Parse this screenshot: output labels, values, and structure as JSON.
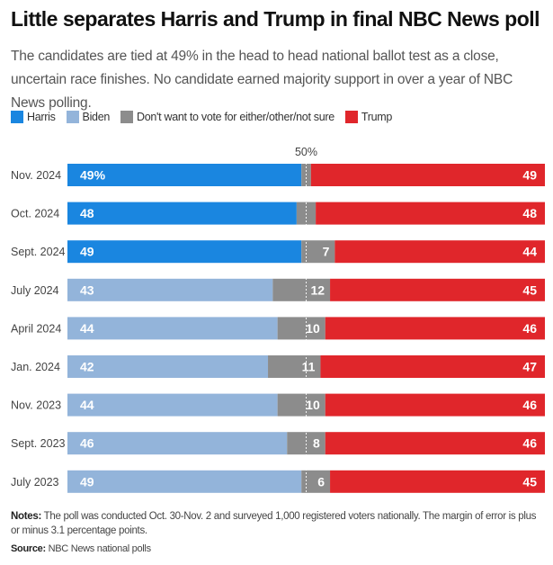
{
  "title": "Little separates Harris and Trump in final NBC News poll",
  "subtitle": "The candidates are tied at 49% in the head to head national ballot test as a close, uncertain race finishes. No candidate earned majority support in over a year of NBC News polling.",
  "legend": [
    {
      "name": "Harris",
      "color": "#1a86e0"
    },
    {
      "name": "Biden",
      "color": "#93b4da"
    },
    {
      "name": "Don't want to vote for either/other/not sure",
      "color": "#8c8c8c"
    },
    {
      "name": "Trump",
      "color": "#e0262b"
    }
  ],
  "notes": {
    "label": "Notes:",
    "text": "The poll was conducted Oct. 30-Nov. 2 and surveyed 1,000 registered voters nationally. The margin of error is plus or minus 3.1 percentage points."
  },
  "source": {
    "label": "Source:",
    "text": "NBC News national polls"
  },
  "chart_data": {
    "type": "bar",
    "orientation": "horizontal-stacked",
    "reference_line": {
      "value": 50,
      "label": "50%"
    },
    "xlim": [
      0,
      100
    ],
    "categories": [
      "Nov. 2024",
      "Oct. 2024",
      "Sept. 2024",
      "July 2024",
      "April 2024",
      "Jan. 2024",
      "Nov. 2023",
      "Sept. 2023",
      "July 2023"
    ],
    "rows": [
      {
        "dem_name": "Harris",
        "dem": 49,
        "other": 2,
        "trump": 49,
        "dem_label": "49%",
        "other_label": "",
        "trump_label": "49"
      },
      {
        "dem_name": "Harris",
        "dem": 48,
        "other": 4,
        "trump": 48,
        "dem_label": "48",
        "other_label": "",
        "trump_label": "48"
      },
      {
        "dem_name": "Harris",
        "dem": 49,
        "other": 7,
        "trump": 44,
        "dem_label": "49",
        "other_label": "7",
        "trump_label": "44"
      },
      {
        "dem_name": "Biden",
        "dem": 43,
        "other": 12,
        "trump": 45,
        "dem_label": "43",
        "other_label": "12",
        "trump_label": "45"
      },
      {
        "dem_name": "Biden",
        "dem": 44,
        "other": 10,
        "trump": 46,
        "dem_label": "44",
        "other_label": "10",
        "trump_label": "46"
      },
      {
        "dem_name": "Biden",
        "dem": 42,
        "other": 11,
        "trump": 47,
        "dem_label": "42",
        "other_label": "11",
        "trump_label": "47"
      },
      {
        "dem_name": "Biden",
        "dem": 44,
        "other": 10,
        "trump": 46,
        "dem_label": "44",
        "other_label": "10",
        "trump_label": "46"
      },
      {
        "dem_name": "Biden",
        "dem": 46,
        "other": 8,
        "trump": 46,
        "dem_label": "46",
        "other_label": "8",
        "trump_label": "46"
      },
      {
        "dem_name": "Biden",
        "dem": 49,
        "other": 6,
        "trump": 45,
        "dem_label": "49",
        "other_label": "6",
        "trump_label": "45"
      }
    ]
  }
}
